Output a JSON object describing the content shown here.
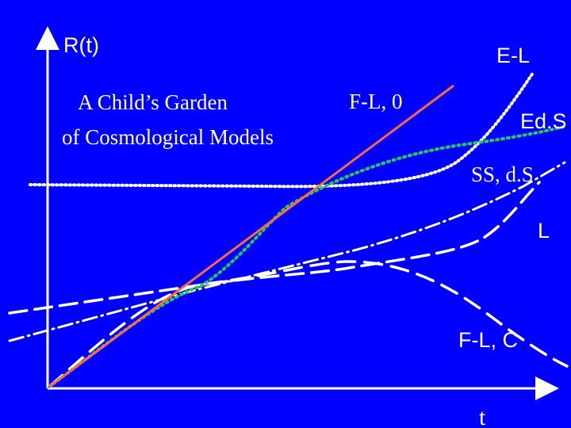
{
  "diagram": {
    "y_axis_label": "R(t)",
    "x_axis_label": "t",
    "title_line1": "A Child’s Garden",
    "title_line2": "of Cosmological Models",
    "curves": [
      {
        "id": "E-L",
        "label": "E-L",
        "color": "#ffffff",
        "style": "dotted"
      },
      {
        "id": "F-L-0",
        "label": "F-L, 0",
        "color": "#ff6a3d",
        "style": "solid"
      },
      {
        "id": "EdS",
        "label": "Ed.S",
        "color": "#22cc55",
        "style": "dotted"
      },
      {
        "id": "SS-dS",
        "label": "SS, d.S",
        "color": "#ffffff",
        "style": "dash-dot"
      },
      {
        "id": "L",
        "label": "L",
        "color": "#ffffff",
        "style": "dashed"
      },
      {
        "id": "F-L-C",
        "label": "F-L, C",
        "color": "#ffffff",
        "style": "dashed"
      }
    ],
    "colors": {
      "background": "#0000ff",
      "axes": "#ffffff",
      "dash_dot_accent": "#ffff66"
    }
  }
}
